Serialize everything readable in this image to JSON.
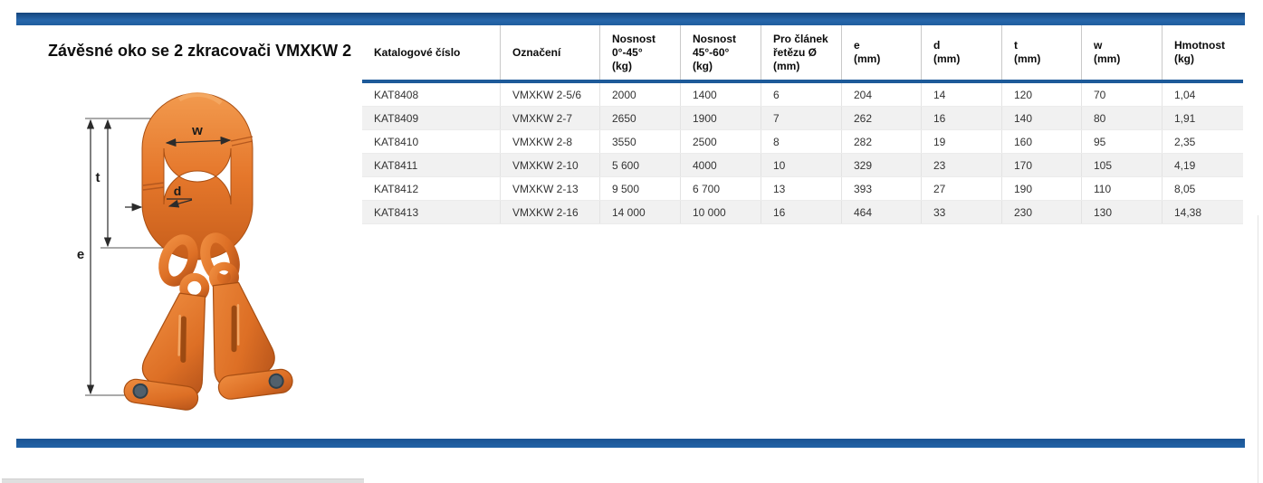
{
  "page": {
    "title": "Závěsné oko se 2 zkracovači VMXKW 2"
  },
  "colors": {
    "accent_blue": "#1d5a99",
    "product_orange": "#e5772b",
    "row_stripe": "#f1f1f1",
    "pin_gray": "#51606c"
  },
  "figure": {
    "description": "orange master link with two clutch-type chain shorteners, dimension callouts",
    "labels": {
      "e": "e",
      "t": "t",
      "w": "w",
      "d": "d"
    }
  },
  "table": {
    "columns": [
      "Katalogové číslo",
      "Označení",
      "Nosnost\n0°-45°\n(kg)",
      "Nosnost\n45°-60°\n(kg)",
      "Pro článek\nřetězu Ø\n(mm)",
      "e\n(mm)",
      "d\n(mm)",
      "t\n(mm)",
      "w\n(mm)",
      "Hmotnost\n(kg)"
    ],
    "rows": [
      [
        "KAT8408",
        "VMXKW 2-5/6",
        "2000",
        "1400",
        "6",
        "204",
        "14",
        "120",
        "70",
        "1,04"
      ],
      [
        "KAT8409",
        "VMXKW 2-7",
        "2650",
        "1900",
        "7",
        "262",
        "16",
        "140",
        "80",
        "1,91"
      ],
      [
        "KAT8410",
        "VMXKW 2-8",
        "3550",
        "2500",
        "8",
        "282",
        "19",
        "160",
        "95",
        "2,35"
      ],
      [
        "KAT8411",
        "VMXKW 2-10",
        "5 600",
        "4000",
        "10",
        "329",
        "23",
        "170",
        "105",
        "4,19"
      ],
      [
        "KAT8412",
        "VMXKW 2-13",
        "9 500",
        "6 700",
        "13",
        "393",
        "27",
        "190",
        "110",
        "8,05"
      ],
      [
        "KAT8413",
        "VMXKW 2-16",
        "14 000",
        "10 000",
        "16",
        "464",
        "33",
        "230",
        "130",
        "14,38"
      ]
    ]
  }
}
